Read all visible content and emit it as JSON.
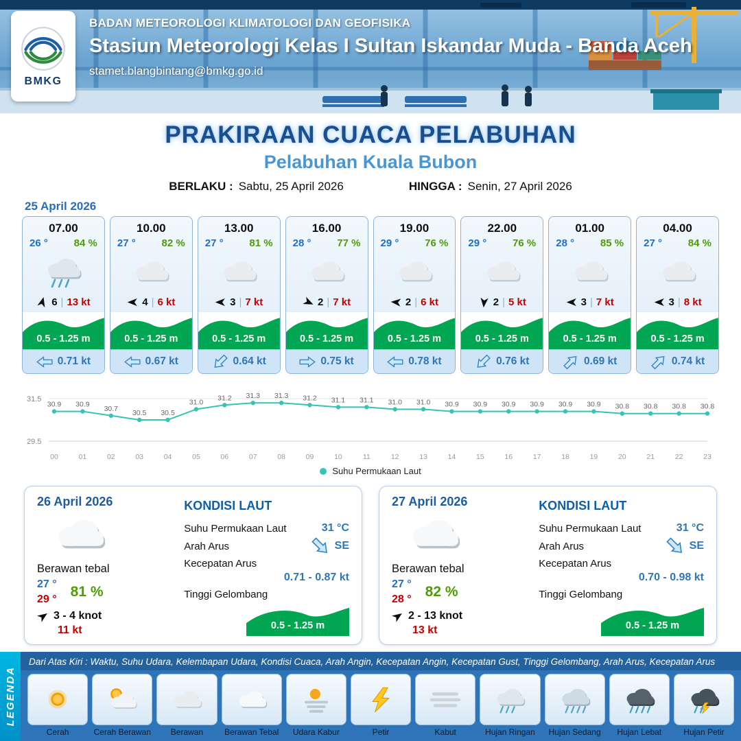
{
  "ui": {
    "pipe": "|"
  },
  "header": {
    "agency": "BADAN METEOROLOGI KLIMATOLOGI DAN GEOFISIKA",
    "station": "Stasiun Meteorologi Kelas I Sultan Iskandar Muda - Banda Aceh",
    "email": "stamet.blangbintang@bmkg.go.id",
    "logo_text": "BMKG"
  },
  "title": {
    "main": "PRAKIRAAN CUACA PELABUHAN",
    "subtitle": "Pelabuhan Kuala Bubon",
    "valid_label": "BERLAKU :",
    "valid_value": "Sabtu, 25 April 2026",
    "until_label": "HINGGA :",
    "until_value": "Senin, 27 April 2026"
  },
  "forecast": {
    "date": "25 April 2026",
    "cards": [
      {
        "time": "07.00",
        "temp": "26 °",
        "humidity": "84 %",
        "icon": "rain-light",
        "wind_speed": "6",
        "gust": "13 kt",
        "wave": "0.5 - 1.25 m",
        "current": "0.71 kt",
        "wind_deg": -75,
        "current_deg": 180
      },
      {
        "time": "10.00",
        "temp": "27 °",
        "humidity": "82 %",
        "icon": "cloudy",
        "wind_speed": "4",
        "gust": "6 kt",
        "wave": "0.5 - 1.25 m",
        "current": "0.67 kt",
        "wind_deg": 180,
        "current_deg": 180
      },
      {
        "time": "13.00",
        "temp": "27 °",
        "humidity": "81 %",
        "icon": "cloudy",
        "wind_speed": "3",
        "gust": "7 kt",
        "wave": "0.5 - 1.25 m",
        "current": "0.64 kt",
        "wind_deg": 180,
        "current_deg": 135
      },
      {
        "time": "16.00",
        "temp": "28 °",
        "humidity": "77 %",
        "icon": "cloudy",
        "wind_speed": "2",
        "gust": "7 kt",
        "wave": "0.5 - 1.25 m",
        "current": "0.75 kt",
        "wind_deg": 25,
        "current_deg": 0
      },
      {
        "time": "19.00",
        "temp": "29 °",
        "humidity": "76 %",
        "icon": "cloudy",
        "wind_speed": "2",
        "gust": "6 kt",
        "wave": "0.5 - 1.25 m",
        "current": "0.78 kt",
        "wind_deg": 185,
        "current_deg": 180
      },
      {
        "time": "22.00",
        "temp": "29 °",
        "humidity": "76 %",
        "icon": "cloudy",
        "wind_speed": "2",
        "gust": "5 kt",
        "wave": "0.5 - 1.25 m",
        "current": "0.76 kt",
        "wind_deg": 95,
        "current_deg": 135
      },
      {
        "time": "01.00",
        "temp": "28 °",
        "humidity": "85 %",
        "icon": "cloudy",
        "wind_speed": "3",
        "gust": "7 kt",
        "wave": "0.5 - 1.25 m",
        "current": "0.69 kt",
        "wind_deg": 180,
        "current_deg": -45
      },
      {
        "time": "04.00",
        "temp": "27 °",
        "humidity": "84 %",
        "icon": "cloudy",
        "wind_speed": "3",
        "gust": "8 kt",
        "wave": "0.5 - 1.25 m",
        "current": "0.74 kt",
        "wind_deg": 180,
        "current_deg": -45
      }
    ]
  },
  "chart_data": {
    "type": "line",
    "series_label": "Suhu Permukaan Laut",
    "x": [
      "00",
      "01",
      "02",
      "03",
      "04",
      "05",
      "06",
      "07",
      "08",
      "09",
      "10",
      "11",
      "12",
      "13",
      "14",
      "15",
      "16",
      "17",
      "18",
      "19",
      "20",
      "21",
      "22",
      "23"
    ],
    "values": [
      30.9,
      30.9,
      30.7,
      30.5,
      30.5,
      31.0,
      31.2,
      31.3,
      31.3,
      31.2,
      31.1,
      31.1,
      31.0,
      31.0,
      30.9,
      30.9,
      30.9,
      30.9,
      30.9,
      30.9,
      30.8,
      30.8,
      30.8,
      30.8
    ],
    "ylim": [
      29.5,
      31.5
    ],
    "line_color": "#35c4b5",
    "grid": "minimal",
    "legend_position": "bottom"
  },
  "sea_labels": {
    "title": "KONDISI LAUT",
    "sst": "Suhu Permukaan Laut",
    "current_dir": "Arah Arus",
    "current_speed": "Kecepatan Arus",
    "wave": "Tinggi Gelombang"
  },
  "daily": [
    {
      "date": "26 April 2026",
      "condition": "Berawan tebal",
      "icon": "cloud-thick",
      "temp_min": "27 °",
      "temp_max": "29 °",
      "humidity": "81 %",
      "wind_range": "3 - 4 knot",
      "wind_gust": "11 kt",
      "wind_deg": -35,
      "sst": "31 °C",
      "current_dir": "SE",
      "current_dir_deg": 45,
      "current_speed": "0.71  - 0.87 kt",
      "wave": "0.5 - 1.25 m"
    },
    {
      "date": "27 April 2026",
      "condition": "Berawan tebal",
      "icon": "cloud-thick",
      "temp_min": "27 °",
      "temp_max": "28 °",
      "humidity": "82 %",
      "wind_range": "2  - 13 knot",
      "wind_gust": "13 kt",
      "wind_deg": -35,
      "sst": "31 °C",
      "current_dir": "SE",
      "current_dir_deg": 45,
      "current_speed": "0.70  - 0.98 kt",
      "wave": "0.5 - 1.25 m"
    }
  ],
  "legend": {
    "title": "LEGENDA",
    "description": "Dari Atas Kiri : Waktu, Suhu Udara, Kelembapan Udara, Kondisi Cuaca, Arah Angin, Kecepatan Angin, Kecepatan Gust, Tinggi Gelombang, Arah Arus, Kecepatan Arus",
    "items": [
      {
        "label": "Cerah",
        "icon": "sun"
      },
      {
        "label": "Cerah Berawan",
        "icon": "sun-cloud"
      },
      {
        "label": "Berawan",
        "icon": "cloudy"
      },
      {
        "label": "Berawan Tebal",
        "icon": "cloud-thick"
      },
      {
        "label": "Udara Kabur",
        "icon": "haze"
      },
      {
        "label": "Petir",
        "icon": "bolt"
      },
      {
        "label": "Kabut",
        "icon": "fog"
      },
      {
        "label": "Hujan Ringan",
        "icon": "rain-light"
      },
      {
        "label": "Hujan Sedang",
        "icon": "rain-medium"
      },
      {
        "label": "Hujan Lebat",
        "icon": "rain-heavy"
      },
      {
        "label": "Hujan Petir",
        "icon": "storm"
      }
    ]
  }
}
